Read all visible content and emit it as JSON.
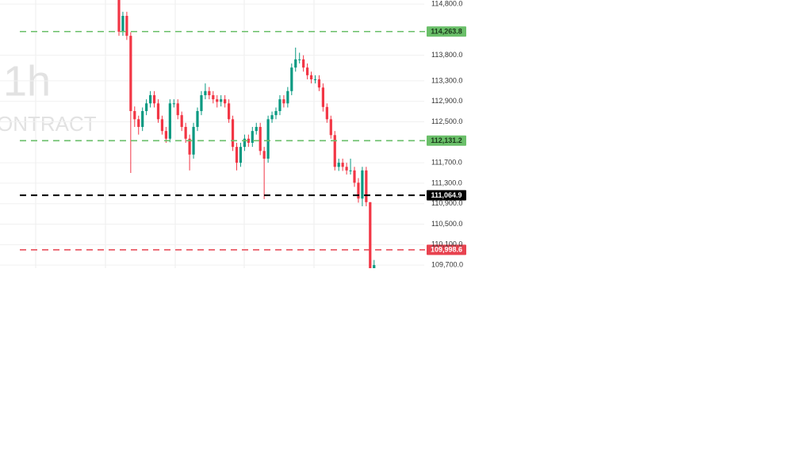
{
  "chart_data": {
    "type": "candlestick",
    "watermark": [
      "1h",
      "ONTRACT"
    ],
    "up_color": "#089981",
    "down_color": "#f23645",
    "ylim": [
      109640,
      114880
    ],
    "yticks": [
      {
        "value": 114800,
        "label": "114,800.0"
      },
      {
        "value": 113800,
        "label": "113,800.0"
      },
      {
        "value": 113300,
        "label": "113,300.0"
      },
      {
        "value": 112900,
        "label": "112,900.0"
      },
      {
        "value": 112500,
        "label": "112,500.0"
      },
      {
        "value": 111700,
        "label": "111,700.0"
      },
      {
        "value": 111300,
        "label": "111,300.0"
      },
      {
        "value": 110900,
        "label": "110,900.0"
      },
      {
        "value": 110500,
        "label": "110,500.0"
      },
      {
        "value": 110100,
        "label": "110,100.0"
      },
      {
        "value": 109700,
        "label": "109,700.0"
      }
    ],
    "grid": true,
    "price_lines": [
      {
        "value": 114263.8,
        "label": "114,263.8",
        "color": "#6abf69",
        "text_color": "#1b3a1b"
      },
      {
        "value": 112131.2,
        "label": "112,131.2",
        "color": "#6abf69",
        "text_color": "#1b3a1b"
      },
      {
        "value": 111064.9,
        "label": "111,064.9",
        "color": "#000000",
        "text_color": "#ffffff"
      },
      {
        "value": 109998.6,
        "label": "109,998.6",
        "color": "#e8424f",
        "text_color": "#ffffff"
      }
    ],
    "open": [
      114880,
      114260,
      114570,
      114180,
      112710,
      112550,
      112400,
      112710,
      112860,
      113020,
      112860,
      112550,
      112320,
      112170,
      112860,
      112860,
      112630,
      112400,
      112170,
      111860,
      112400,
      112710,
      113020,
      113100,
      113020,
      112940,
      112890,
      112940,
      112860,
      112550,
      112010,
      111700,
      112010,
      112170,
      112090,
      112320,
      112400,
      111930,
      111780,
      112550,
      112630,
      112710,
      112940,
      112860,
      113100,
      113560,
      113720,
      113720,
      113560,
      113410,
      113330,
      113330,
      113170,
      112790,
      112550,
      112240,
      111620,
      111700,
      111620,
      111550,
      111550,
      111310,
      111000,
      111550,
      110930,
      109640
    ],
    "high": [
      114950,
      114650,
      114650,
      114250,
      112800,
      112620,
      112780,
      112940,
      113100,
      113100,
      112940,
      112620,
      112400,
      112940,
      112940,
      112940,
      112700,
      112480,
      112250,
      112480,
      112780,
      113100,
      113250,
      113180,
      113100,
      113020,
      113020,
      113020,
      112940,
      112620,
      112090,
      112090,
      112250,
      112250,
      112400,
      112480,
      112480,
      112010,
      112620,
      112700,
      112780,
      113020,
      113020,
      113180,
      113640,
      113950,
      113850,
      113800,
      113640,
      113480,
      113410,
      113410,
      113250,
      112860,
      112620,
      112320,
      111780,
      111780,
      111700,
      111780,
      111620,
      111400,
      111620,
      111620,
      110930,
      109800
    ],
    "low": [
      114180,
      114180,
      114100,
      111500,
      112400,
      112250,
      112320,
      112630,
      112780,
      112780,
      112480,
      112250,
      112090,
      112100,
      112780,
      112550,
      112320,
      112090,
      111550,
      111780,
      112320,
      112630,
      112940,
      112940,
      112860,
      112780,
      112800,
      112780,
      112480,
      111930,
      111550,
      111620,
      111930,
      112010,
      112010,
      112250,
      111850,
      110990,
      111700,
      112480,
      112550,
      112630,
      112780,
      112780,
      113020,
      113480,
      113640,
      113480,
      113330,
      113250,
      113250,
      113100,
      112700,
      112480,
      112170,
      111550,
      111540,
      111540,
      111470,
      111470,
      111230,
      110920,
      110850,
      110850,
      109500,
      109600
    ],
    "close": [
      114260,
      114570,
      114180,
      112710,
      112550,
      112400,
      112710,
      112860,
      113020,
      112860,
      112550,
      112320,
      112170,
      112860,
      112860,
      112630,
      112400,
      112170,
      111860,
      112400,
      112710,
      113020,
      113100,
      113020,
      112940,
      112890,
      112940,
      112860,
      112550,
      112010,
      111700,
      112010,
      112170,
      112090,
      112320,
      112400,
      111930,
      111780,
      112550,
      112630,
      112710,
      112940,
      112860,
      113100,
      113560,
      113720,
      113720,
      113560,
      113410,
      113330,
      113330,
      113170,
      112790,
      112550,
      112240,
      111620,
      111700,
      111620,
      111550,
      111550,
      111310,
      111000,
      111550,
      110930,
      109640,
      109700
    ]
  }
}
